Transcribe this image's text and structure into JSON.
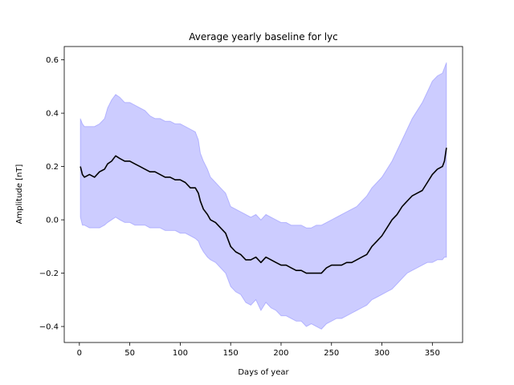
{
  "chart_data": {
    "type": "line",
    "title": "Average yearly baseline for lyc",
    "xlabel": "Days of year",
    "ylabel": "Amplitude [nT]",
    "xlim": [
      -15,
      380
    ],
    "ylim": [
      -0.46,
      0.65
    ],
    "xticks": [
      0,
      50,
      100,
      150,
      200,
      250,
      300,
      350
    ],
    "xtick_labels": [
      "0",
      "50",
      "100",
      "150",
      "200",
      "250",
      "300",
      "350"
    ],
    "yticks": [
      -0.4,
      -0.2,
      0.0,
      0.2,
      0.4,
      0.6
    ],
    "ytick_labels": [
      "−0.4",
      "−0.2",
      "0.0",
      "0.2",
      "0.4",
      "0.6"
    ],
    "grid": false,
    "colors": {
      "line": "#000000",
      "band": "#0000ff"
    },
    "series": [
      {
        "kind": "line",
        "x": [
          1,
          3,
          5,
          10,
          15,
          20,
          25,
          28,
          32,
          36,
          40,
          45,
          50,
          55,
          60,
          65,
          70,
          75,
          80,
          85,
          90,
          95,
          100,
          105,
          110,
          115,
          118,
          120,
          123,
          127,
          130,
          135,
          140,
          145,
          150,
          155,
          160,
          165,
          170,
          175,
          180,
          185,
          190,
          195,
          200,
          205,
          210,
          215,
          220,
          225,
          230,
          235,
          240,
          245,
          250,
          255,
          260,
          265,
          270,
          275,
          280,
          285,
          290,
          295,
          300,
          305,
          310,
          315,
          320,
          325,
          330,
          335,
          340,
          345,
          350,
          355,
          360,
          362,
          364
        ],
        "values": [
          0.2,
          0.17,
          0.16,
          0.17,
          0.16,
          0.18,
          0.19,
          0.21,
          0.22,
          0.24,
          0.23,
          0.22,
          0.22,
          0.21,
          0.2,
          0.19,
          0.18,
          0.18,
          0.17,
          0.16,
          0.16,
          0.15,
          0.15,
          0.14,
          0.12,
          0.12,
          0.1,
          0.07,
          0.04,
          0.02,
          0.0,
          -0.01,
          -0.03,
          -0.05,
          -0.1,
          -0.12,
          -0.13,
          -0.15,
          -0.15,
          -0.14,
          -0.16,
          -0.14,
          -0.15,
          -0.16,
          -0.17,
          -0.17,
          -0.18,
          -0.19,
          -0.19,
          -0.2,
          -0.2,
          -0.2,
          -0.2,
          -0.18,
          -0.17,
          -0.17,
          -0.17,
          -0.16,
          -0.16,
          -0.15,
          -0.14,
          -0.13,
          -0.1,
          -0.08,
          -0.06,
          -0.03,
          0.0,
          0.02,
          0.05,
          0.07,
          0.09,
          0.1,
          0.11,
          0.14,
          0.17,
          0.19,
          0.2,
          0.22,
          0.27
        ]
      },
      {
        "kind": "band",
        "x": [
          1,
          3,
          5,
          10,
          15,
          20,
          25,
          28,
          32,
          36,
          40,
          45,
          50,
          55,
          60,
          65,
          70,
          75,
          80,
          85,
          90,
          95,
          100,
          105,
          110,
          115,
          118,
          120,
          123,
          127,
          130,
          135,
          140,
          145,
          150,
          155,
          160,
          165,
          170,
          175,
          180,
          185,
          190,
          195,
          200,
          205,
          210,
          215,
          220,
          225,
          230,
          235,
          240,
          245,
          250,
          255,
          260,
          265,
          270,
          275,
          280,
          285,
          290,
          295,
          300,
          305,
          310,
          315,
          320,
          325,
          330,
          335,
          340,
          345,
          350,
          355,
          360,
          362,
          364
        ],
        "lower": [
          0.01,
          -0.02,
          -0.02,
          -0.03,
          -0.03,
          -0.03,
          -0.02,
          -0.01,
          0.0,
          0.01,
          0.0,
          -0.01,
          -0.01,
          -0.02,
          -0.02,
          -0.02,
          -0.03,
          -0.03,
          -0.03,
          -0.04,
          -0.04,
          -0.04,
          -0.05,
          -0.05,
          -0.06,
          -0.07,
          -0.08,
          -0.1,
          -0.12,
          -0.14,
          -0.15,
          -0.16,
          -0.18,
          -0.2,
          -0.25,
          -0.27,
          -0.28,
          -0.31,
          -0.32,
          -0.3,
          -0.34,
          -0.31,
          -0.33,
          -0.34,
          -0.36,
          -0.36,
          -0.37,
          -0.38,
          -0.38,
          -0.4,
          -0.39,
          -0.4,
          -0.41,
          -0.39,
          -0.38,
          -0.37,
          -0.37,
          -0.36,
          -0.35,
          -0.34,
          -0.33,
          -0.32,
          -0.3,
          -0.29,
          -0.28,
          -0.27,
          -0.26,
          -0.24,
          -0.22,
          -0.2,
          -0.19,
          -0.18,
          -0.17,
          -0.16,
          -0.16,
          -0.15,
          -0.15,
          -0.14,
          -0.14
        ],
        "upper": [
          0.38,
          0.36,
          0.35,
          0.35,
          0.35,
          0.36,
          0.38,
          0.42,
          0.45,
          0.47,
          0.46,
          0.44,
          0.44,
          0.43,
          0.42,
          0.41,
          0.39,
          0.38,
          0.38,
          0.37,
          0.37,
          0.36,
          0.36,
          0.35,
          0.34,
          0.33,
          0.3,
          0.25,
          0.22,
          0.19,
          0.16,
          0.14,
          0.12,
          0.1,
          0.05,
          0.04,
          0.03,
          0.02,
          0.01,
          0.02,
          0.0,
          0.02,
          0.01,
          0.0,
          -0.01,
          -0.01,
          -0.02,
          -0.02,
          -0.02,
          -0.03,
          -0.03,
          -0.02,
          -0.02,
          -0.01,
          0.0,
          0.01,
          0.02,
          0.03,
          0.04,
          0.05,
          0.07,
          0.09,
          0.12,
          0.14,
          0.16,
          0.19,
          0.22,
          0.26,
          0.3,
          0.34,
          0.38,
          0.41,
          0.44,
          0.48,
          0.52,
          0.54,
          0.55,
          0.57,
          0.59
        ]
      }
    ]
  }
}
